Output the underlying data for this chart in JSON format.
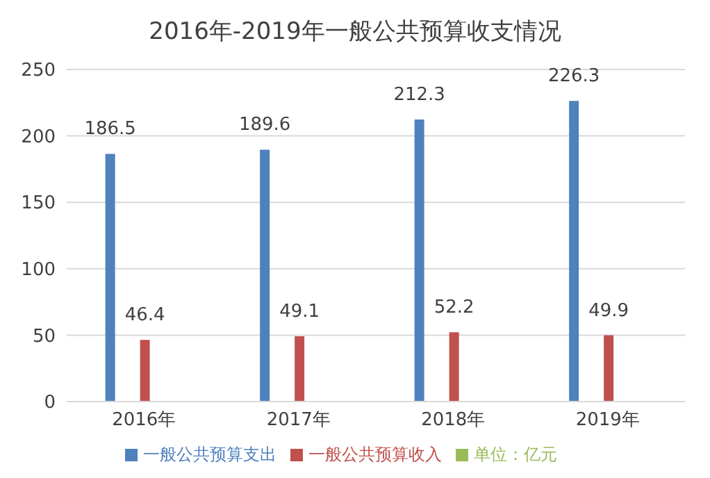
{
  "chart_data": {
    "type": "bar",
    "title": "2016年-2019年一般公共预算收支情况",
    "categories": [
      "2016年",
      "2017年",
      "2018年",
      "2019年"
    ],
    "series": [
      {
        "name": "一般公共预算支出",
        "color": "#4f81bd",
        "values": [
          186.5,
          189.6,
          212.3,
          226.3
        ]
      },
      {
        "name": "一般公共预算收入",
        "color": "#c0504d",
        "values": [
          46.4,
          49.1,
          52.2,
          49.9
        ]
      },
      {
        "name": "单位：亿元",
        "color": "#9bbb59",
        "values": [
          null,
          null,
          null,
          null
        ]
      }
    ],
    "ylim": [
      0,
      250
    ],
    "yticks": [
      0,
      50,
      100,
      150,
      200,
      250
    ],
    "grid": "y",
    "legend": "bottom",
    "data_labels": true
  }
}
